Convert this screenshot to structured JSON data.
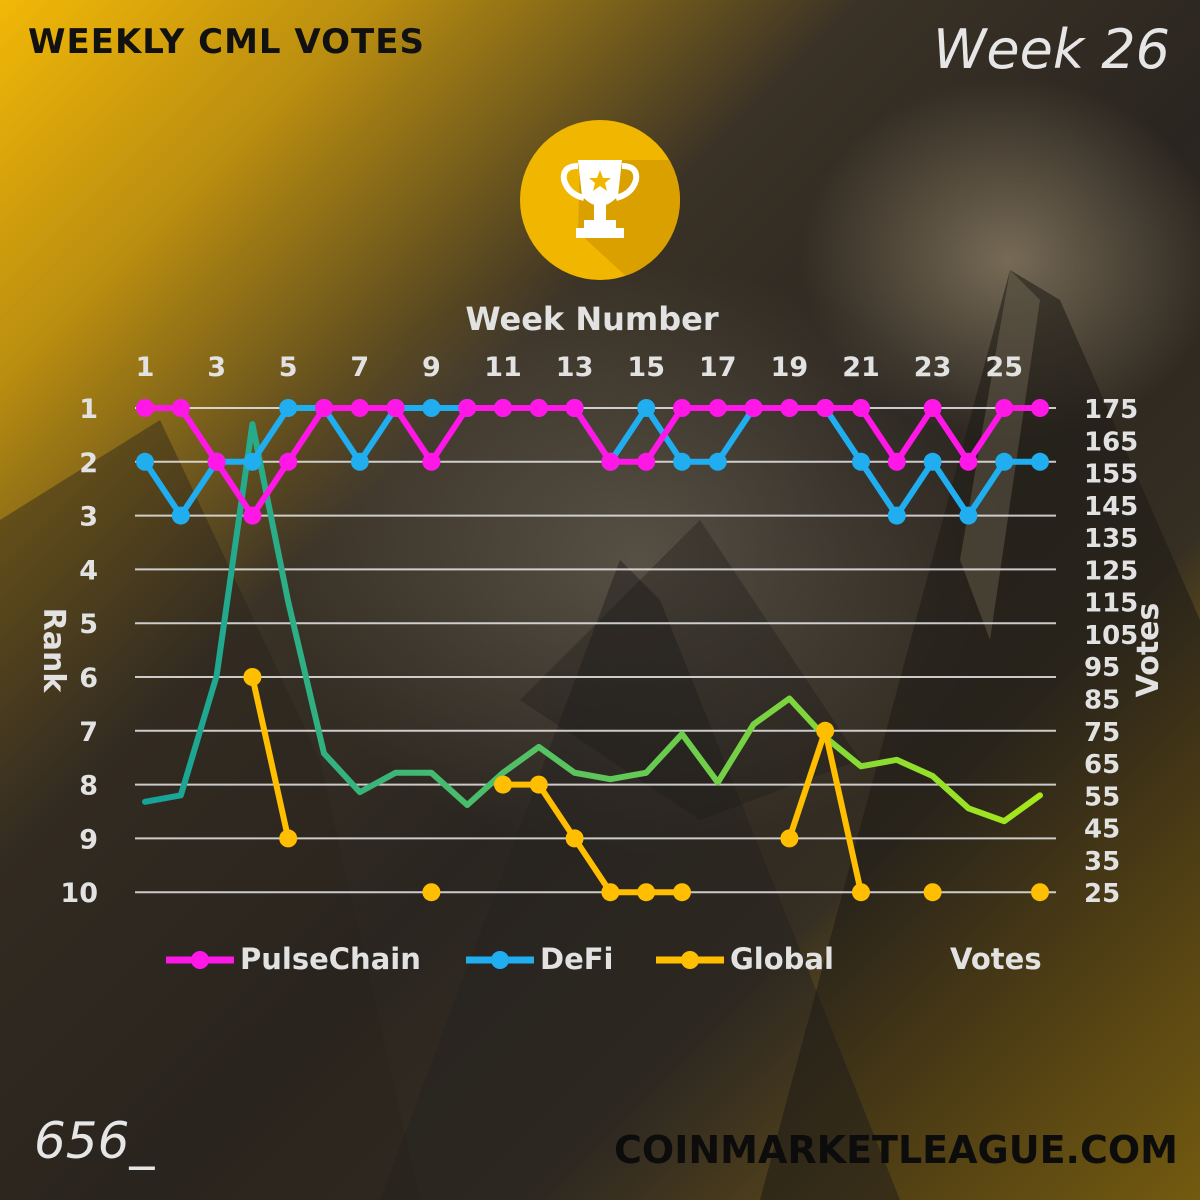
{
  "header": {
    "title": "WEEKLY CML VOTES",
    "week_label": "Week 26"
  },
  "footer": {
    "code": "656_",
    "site": "COINMARKETLEAGUE.COM"
  },
  "icons": {
    "badge": "trophy-icon"
  },
  "colors": {
    "pulsechain": "#ff17e8",
    "defi": "#20aef0",
    "global": "#ffbf00",
    "votes_start": "#15a39a",
    "votes_end": "#a6e81a",
    "gridline": "#e8e8e8",
    "axis_text": "#e2e2e2",
    "title_text": "#111111",
    "accent": "#f1b600"
  },
  "chart_data": {
    "type": "line",
    "title": "",
    "xlabel": "Week Number",
    "ylabel": "Rank",
    "y2label": "Votes",
    "x": [
      1,
      2,
      3,
      4,
      5,
      6,
      7,
      8,
      9,
      10,
      11,
      12,
      13,
      14,
      15,
      16,
      17,
      18,
      19,
      20,
      21,
      22,
      23,
      24,
      25,
      26
    ],
    "x_tick_labels": [
      "1",
      "3",
      "5",
      "7",
      "9",
      "11",
      "13",
      "15",
      "17",
      "19",
      "21",
      "23",
      "25"
    ],
    "x_axis_position": "top",
    "y_ticks": [
      "1",
      "2",
      "3",
      "4",
      "5",
      "6",
      "7",
      "8",
      "9",
      "10"
    ],
    "ylim": [
      1,
      10
    ],
    "y_inverted": true,
    "y2_ticks": [
      "175",
      "165",
      "155",
      "145",
      "135",
      "125",
      "115",
      "105",
      "95",
      "85",
      "75",
      "65",
      "55",
      "45",
      "35",
      "25"
    ],
    "y2lim": [
      25,
      175
    ],
    "grid": true,
    "legend_position": "bottom",
    "series": [
      {
        "name": "PulseChain",
        "axis": "rank",
        "values": [
          1,
          1,
          2,
          3,
          2,
          1,
          1,
          1,
          2,
          1,
          1,
          1,
          1,
          2,
          2,
          1,
          1,
          1,
          1,
          1,
          1,
          2,
          1,
          2,
          1,
          1
        ]
      },
      {
        "name": "DeFi",
        "axis": "rank",
        "values": [
          2,
          3,
          2,
          2,
          1,
          1,
          2,
          1,
          1,
          1,
          1,
          1,
          1,
          2,
          1,
          2,
          2,
          1,
          1,
          1,
          2,
          3,
          2,
          3,
          2,
          2
        ]
      },
      {
        "name": "Global",
        "axis": "rank",
        "values": [
          null,
          null,
          null,
          6,
          9,
          null,
          null,
          null,
          10,
          null,
          8,
          8,
          9,
          10,
          10,
          10,
          null,
          null,
          9,
          7,
          10,
          null,
          10,
          null,
          null,
          10
        ]
      },
      {
        "name": "Votes",
        "axis": "votes",
        "values": [
          53,
          55,
          92,
          170,
          115,
          68,
          56,
          62,
          62,
          52,
          62,
          70,
          62,
          60,
          62,
          74,
          59,
          77,
          85,
          73,
          64,
          66,
          61,
          51,
          47,
          55
        ]
      }
    ]
  }
}
